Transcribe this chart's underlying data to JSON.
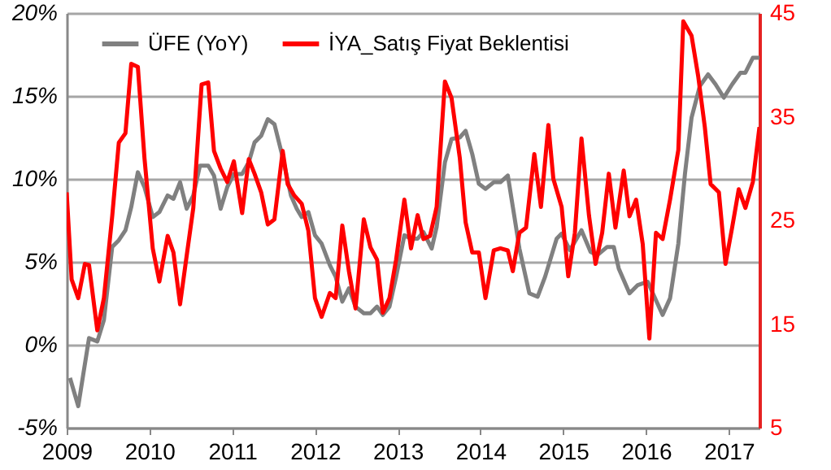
{
  "chart_data": {
    "type": "line",
    "xlim": [
      2009,
      2017.37
    ],
    "xticks": [
      2009,
      2010,
      2011,
      2012,
      2013,
      2014,
      2015,
      2016,
      2017
    ],
    "ylim": [
      -5,
      20
    ],
    "yticks": [
      {
        "value": -5,
        "label": "-5%"
      },
      {
        "value": 0,
        "label": "0%"
      },
      {
        "value": 5,
        "label": "5%"
      },
      {
        "value": 10,
        "label": "10%"
      },
      {
        "value": 15,
        "label": "15%"
      },
      {
        "value": 20,
        "label": "20%"
      }
    ],
    "y2lim": [
      5,
      45
    ],
    "y2ticks": [
      5,
      15,
      25,
      35,
      45
    ],
    "grid": "y",
    "legend": "top",
    "series": [
      {
        "name": "ÜFE (YoY)",
        "color": "#808080",
        "axis": "y",
        "x": [
          2009.04,
          2009.14,
          2009.2,
          2009.27,
          2009.37,
          2009.45,
          2009.55,
          2009.63,
          2009.71,
          2009.78,
          2009.86,
          2009.94,
          2010.04,
          2010.12,
          2010.22,
          2010.29,
          2010.37,
          2010.45,
          2010.53,
          2010.61,
          2010.71,
          2010.78,
          2010.86,
          2010.94,
          2011.02,
          2011.12,
          2011.2,
          2011.27,
          2011.35,
          2011.43,
          2011.51,
          2011.61,
          2011.71,
          2011.78,
          2011.84,
          2011.92,
          2012.0,
          2012.08,
          2012.18,
          2012.25,
          2012.33,
          2012.41,
          2012.49,
          2012.59,
          2012.67,
          2012.75,
          2012.82,
          2012.9,
          2012.98,
          2013.08,
          2013.16,
          2013.24,
          2013.31,
          2013.41,
          2013.47,
          2013.57,
          2013.65,
          2013.75,
          2013.82,
          2013.9,
          2013.98,
          2014.06,
          2014.16,
          2014.24,
          2014.33,
          2014.41,
          2014.47,
          2014.59,
          2014.69,
          2014.78,
          2014.92,
          2014.98,
          2015.08,
          2015.22,
          2015.33,
          2015.41,
          2015.53,
          2015.61,
          2015.67,
          2015.8,
          2015.9,
          2016.02,
          2016.1,
          2016.2,
          2016.29,
          2016.39,
          2016.47,
          2016.55,
          2016.65,
          2016.75,
          2016.84,
          2016.94,
          2017.04,
          2017.14,
          2017.2,
          2017.29,
          2017.37
        ],
        "values": [
          -2.0,
          -3.7,
          -1.8,
          0.4,
          0.2,
          1.5,
          5.9,
          6.3,
          6.9,
          8.3,
          10.4,
          9.5,
          7.7,
          8.0,
          9.0,
          8.8,
          9.8,
          8.2,
          9.0,
          10.8,
          10.8,
          10.2,
          8.2,
          9.5,
          10.3,
          10.3,
          11.0,
          12.2,
          12.6,
          13.6,
          13.3,
          11.3,
          9.0,
          8.2,
          7.7,
          8.0,
          6.6,
          6.1,
          4.8,
          4.1,
          2.6,
          3.4,
          2.3,
          1.9,
          1.9,
          2.3,
          1.8,
          2.3,
          4.1,
          6.6,
          6.4,
          6.4,
          6.8,
          5.8,
          7.1,
          11.0,
          12.4,
          12.5,
          12.9,
          11.5,
          9.7,
          9.4,
          9.8,
          9.8,
          10.2,
          7.7,
          5.8,
          3.1,
          2.9,
          4.1,
          6.4,
          6.7,
          5.7,
          6.9,
          5.6,
          5.4,
          5.9,
          5.9,
          4.6,
          3.1,
          3.6,
          3.8,
          2.9,
          1.8,
          2.8,
          6.1,
          10.3,
          13.7,
          15.6,
          16.3,
          15.7,
          14.9,
          15.7,
          16.4,
          16.4,
          17.3,
          17.3
        ]
      },
      {
        "name": "İYA_Satış Fiyat Beklentisi",
        "color": "#ff0000",
        "axis": "y2",
        "x": [
          2009.0,
          2009.06,
          2009.14,
          2009.22,
          2009.27,
          2009.37,
          2009.45,
          2009.55,
          2009.63,
          2009.71,
          2009.78,
          2009.86,
          2009.94,
          2010.04,
          2010.12,
          2010.22,
          2010.29,
          2010.37,
          2010.45,
          2010.53,
          2010.63,
          2010.71,
          2010.78,
          2010.86,
          2010.94,
          2011.02,
          2011.12,
          2011.2,
          2011.27,
          2011.35,
          2011.43,
          2011.51,
          2011.61,
          2011.67,
          2011.75,
          2011.84,
          2011.92,
          2012.0,
          2012.08,
          2012.18,
          2012.25,
          2012.33,
          2012.41,
          2012.49,
          2012.59,
          2012.67,
          2012.75,
          2012.82,
          2012.9,
          2012.98,
          2013.08,
          2013.16,
          2013.24,
          2013.31,
          2013.39,
          2013.47,
          2013.57,
          2013.65,
          2013.75,
          2013.82,
          2013.9,
          2013.98,
          2014.06,
          2014.16,
          2014.24,
          2014.33,
          2014.39,
          2014.47,
          2014.55,
          2014.65,
          2014.73,
          2014.82,
          2014.88,
          2014.98,
          2015.06,
          2015.14,
          2015.22,
          2015.31,
          2015.39,
          2015.47,
          2015.55,
          2015.63,
          2015.73,
          2015.8,
          2015.88,
          2015.96,
          2016.04,
          2016.12,
          2016.2,
          2016.29,
          2016.39,
          2016.45,
          2016.55,
          2016.63,
          2016.71,
          2016.78,
          2016.88,
          2016.96,
          2017.04,
          2017.12,
          2017.2,
          2017.29,
          2017.37
        ],
        "values": [
          27.7,
          19.3,
          17.5,
          20.8,
          20.7,
          14.4,
          17.5,
          25.4,
          32.5,
          33.4,
          40.1,
          39.8,
          31.0,
          22.3,
          19.1,
          23.5,
          21.9,
          16.9,
          21.6,
          26.2,
          38.1,
          38.3,
          31.7,
          30.0,
          28.7,
          30.7,
          25.7,
          30.9,
          29.5,
          27.7,
          24.6,
          25.1,
          31.7,
          28.5,
          27.4,
          26.6,
          24.0,
          17.5,
          15.7,
          18.0,
          17.5,
          24.5,
          20.1,
          16.5,
          25.1,
          22.4,
          21.2,
          16.1,
          17.5,
          21.2,
          27.0,
          22.3,
          25.5,
          23.2,
          23.5,
          26.3,
          38.4,
          36.8,
          31.0,
          24.8,
          21.9,
          21.9,
          17.5,
          22.1,
          22.3,
          22.1,
          20.1,
          23.8,
          24.3,
          31.4,
          26.3,
          34.2,
          29.0,
          26.3,
          19.6,
          23.8,
          32.9,
          25.5,
          20.8,
          23.8,
          29.5,
          24.3,
          29.8,
          25.4,
          27.0,
          22.7,
          13.6,
          23.8,
          23.2,
          27.0,
          31.8,
          44.2,
          42.8,
          38.9,
          34.0,
          28.5,
          27.7,
          20.8,
          24.3,
          28.0,
          26.2,
          28.7,
          34.0
        ]
      }
    ]
  }
}
